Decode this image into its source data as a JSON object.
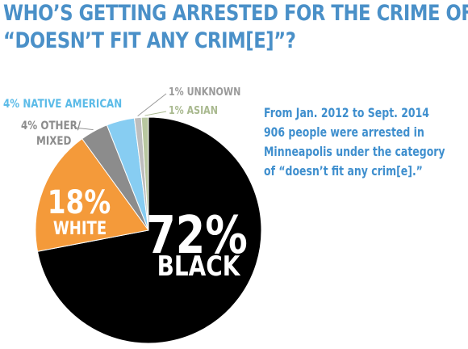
{
  "title_lines": [
    "WHO’S GETTING ARRESTED FOR THE CRIME OF",
    "“DOESN’T FIT ANY CRIM[E]”?"
  ],
  "note_lines": [
    "From Jan. 2012 to Sept. 2014",
    "906 people were arrested in",
    "Minneapolis under the category",
    "of “doesn’t fit any crim[e].”"
  ],
  "chart_data": {
    "type": "pie",
    "start": "12 o'clock",
    "direction": "clockwise",
    "slices": [
      {
        "pct_label": "72%",
        "name": "BLACK",
        "value": 72,
        "color": "#000000"
      },
      {
        "pct_label": "18%",
        "name": "WHITE",
        "value": 18,
        "color": "#f49a3a"
      },
      {
        "pct_label": "4%",
        "name": "OTHER/ MIXED",
        "value": 4,
        "color": "#8c8c8c"
      },
      {
        "pct_label": "4%",
        "name": "NATIVE AMERICAN",
        "value": 4,
        "color": "#87cdf2"
      },
      {
        "pct_label": "1%",
        "name": "UNKNOWN",
        "value": 1,
        "color": "#bdbdbd"
      },
      {
        "pct_label": "1%",
        "name": "ASIAN",
        "value": 1,
        "color": "#b8c7a0"
      }
    ],
    "label_colors": {
      "OTHER/ MIXED": "#8c8c8c",
      "NATIVE AMERICAN": "#5bbbe8",
      "UNKNOWN": "#9a9a9a",
      "ASIAN": "#a9b98f"
    }
  }
}
